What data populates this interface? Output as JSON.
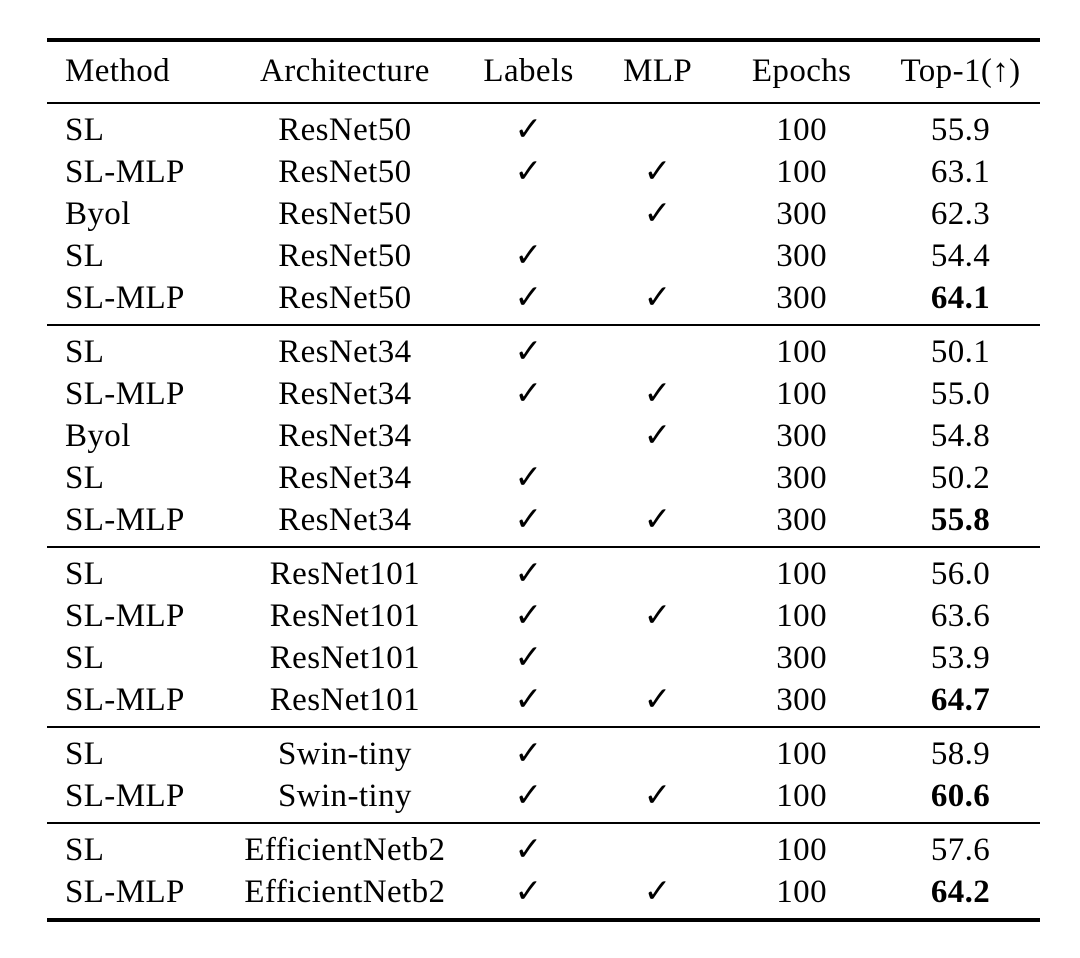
{
  "page": {
    "background_color": "#ffffff",
    "text_color": "#000000",
    "rule_color": "#000000"
  },
  "table": {
    "check_glyph": "✓",
    "columns": [
      {
        "key": "method",
        "field": "method",
        "label": "Method",
        "type": "text"
      },
      {
        "key": "architecture",
        "field": "architecture",
        "label": "Architecture",
        "type": "text"
      },
      {
        "key": "labels",
        "field": "labels",
        "label": "Labels",
        "type": "check"
      },
      {
        "key": "mlp",
        "field": "mlp",
        "label": "MLP",
        "type": "check"
      },
      {
        "key": "epochs",
        "field": "epochs",
        "label": "Epochs",
        "type": "text"
      },
      {
        "key": "top1",
        "field": "top1",
        "label": "Top-1(↑)",
        "type": "text"
      }
    ],
    "groups": [
      {
        "name": "resnet50",
        "rows": [
          {
            "method": "SL",
            "architecture": "ResNet50",
            "labels": true,
            "mlp": false,
            "epochs": "100",
            "top1": "55.9",
            "top1_bold": false
          },
          {
            "method": "SL-MLP",
            "architecture": "ResNet50",
            "labels": true,
            "mlp": true,
            "epochs": "100",
            "top1": "63.1",
            "top1_bold": false
          },
          {
            "method": "Byol",
            "architecture": "ResNet50",
            "labels": false,
            "mlp": true,
            "epochs": "300",
            "top1": "62.3",
            "top1_bold": false
          },
          {
            "method": "SL",
            "architecture": "ResNet50",
            "labels": true,
            "mlp": false,
            "epochs": "300",
            "top1": "54.4",
            "top1_bold": false
          },
          {
            "method": "SL-MLP",
            "architecture": "ResNet50",
            "labels": true,
            "mlp": true,
            "epochs": "300",
            "top1": "64.1",
            "top1_bold": true
          }
        ]
      },
      {
        "name": "resnet34",
        "rows": [
          {
            "method": "SL",
            "architecture": "ResNet34",
            "labels": true,
            "mlp": false,
            "epochs": "100",
            "top1": "50.1",
            "top1_bold": false
          },
          {
            "method": "SL-MLP",
            "architecture": "ResNet34",
            "labels": true,
            "mlp": true,
            "epochs": "100",
            "top1": "55.0",
            "top1_bold": false
          },
          {
            "method": "Byol",
            "architecture": "ResNet34",
            "labels": false,
            "mlp": true,
            "epochs": "300",
            "top1": "54.8",
            "top1_bold": false
          },
          {
            "method": "SL",
            "architecture": "ResNet34",
            "labels": true,
            "mlp": false,
            "epochs": "300",
            "top1": "50.2",
            "top1_bold": false
          },
          {
            "method": "SL-MLP",
            "architecture": "ResNet34",
            "labels": true,
            "mlp": true,
            "epochs": "300",
            "top1": "55.8",
            "top1_bold": true
          }
        ]
      },
      {
        "name": "resnet101",
        "rows": [
          {
            "method": "SL",
            "architecture": "ResNet101",
            "labels": true,
            "mlp": false,
            "epochs": "100",
            "top1": "56.0",
            "top1_bold": false
          },
          {
            "method": "SL-MLP",
            "architecture": "ResNet101",
            "labels": true,
            "mlp": true,
            "epochs": "100",
            "top1": "63.6",
            "top1_bold": false
          },
          {
            "method": "SL",
            "architecture": "ResNet101",
            "labels": true,
            "mlp": false,
            "epochs": "300",
            "top1": "53.9",
            "top1_bold": false
          },
          {
            "method": "SL-MLP",
            "architecture": "ResNet101",
            "labels": true,
            "mlp": true,
            "epochs": "300",
            "top1": "64.7",
            "top1_bold": true
          }
        ]
      },
      {
        "name": "swin-tiny",
        "rows": [
          {
            "method": "SL",
            "architecture": "Swin-tiny",
            "labels": true,
            "mlp": false,
            "epochs": "100",
            "top1": "58.9",
            "top1_bold": false
          },
          {
            "method": "SL-MLP",
            "architecture": "Swin-tiny",
            "labels": true,
            "mlp": true,
            "epochs": "100",
            "top1": "60.6",
            "top1_bold": true
          }
        ]
      },
      {
        "name": "efficientnetb2",
        "rows": [
          {
            "method": "SL",
            "architecture": "EfficientNetb2",
            "labels": true,
            "mlp": false,
            "epochs": "100",
            "top1": "57.6",
            "top1_bold": false
          },
          {
            "method": "SL-MLP",
            "architecture": "EfficientNetb2",
            "labels": true,
            "mlp": true,
            "epochs": "100",
            "top1": "64.2",
            "top1_bold": true
          }
        ]
      }
    ]
  }
}
